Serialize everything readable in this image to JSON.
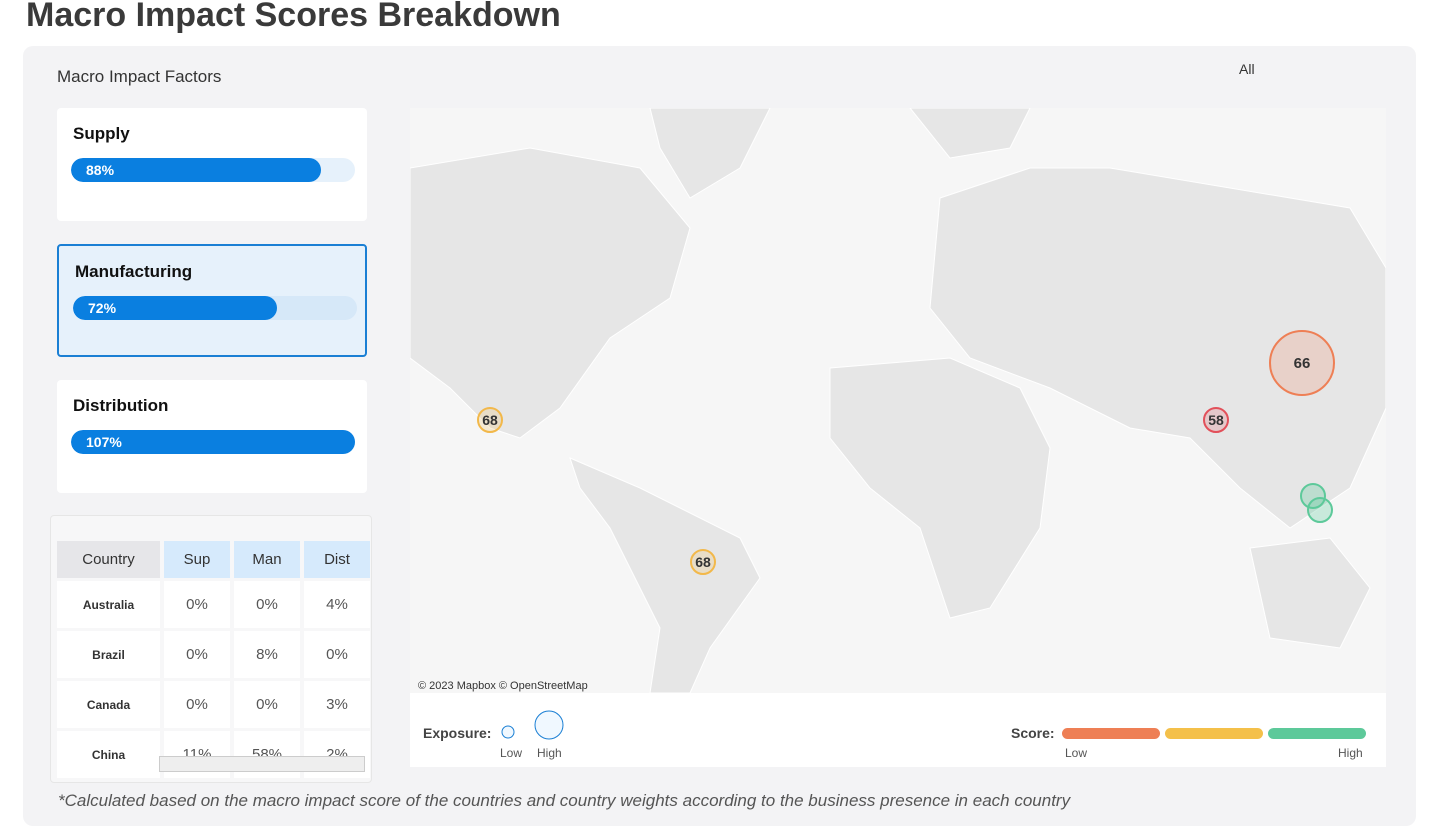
{
  "header": {
    "title": "Macro Impact Scores Breakdown"
  },
  "panel": {
    "title": "Macro Impact Factors",
    "filter": "All"
  },
  "factors": [
    {
      "name": "Supply",
      "value": 88,
      "label": "88%",
      "selected": false
    },
    {
      "name": "Manufacturing",
      "value": 72,
      "label": "72%",
      "selected": true
    },
    {
      "name": "Distribution",
      "value": 107,
      "label": "107%",
      "selected": false
    }
  ],
  "table": {
    "columns": [
      "Country",
      "Sup",
      "Man",
      "Dist"
    ],
    "rows": [
      [
        "Australia",
        "0%",
        "0%",
        "4%"
      ],
      [
        "Brazil",
        "0%",
        "8%",
        "0%"
      ],
      [
        "Canada",
        "0%",
        "0%",
        "3%"
      ],
      [
        "China",
        "11%",
        "58%",
        "2%"
      ]
    ]
  },
  "map": {
    "attribution": "© 2023 Mapbox © OpenStreetMap",
    "markers": [
      {
        "score": 68,
        "color": "#f2b84a"
      },
      {
        "score": 68,
        "color": "#f2b84a"
      },
      {
        "score": 66,
        "color": "#ee7f55"
      },
      {
        "score": 58,
        "color": "#e2505a"
      },
      {
        "score": null,
        "color": "#5dc99a"
      },
      {
        "score": null,
        "color": "#5dc99a"
      }
    ]
  },
  "legend": {
    "exposure": {
      "title": "Exposure:",
      "low": "Low",
      "high": "High"
    },
    "score": {
      "title": "Score:",
      "low": "Low",
      "high": "High",
      "colors": [
        "#ee7f55",
        "#f4c04a",
        "#5dc99a"
      ]
    }
  },
  "footnote": "*Calculated based on the macro impact score of the countries and country weights according to the business presence in each country"
}
